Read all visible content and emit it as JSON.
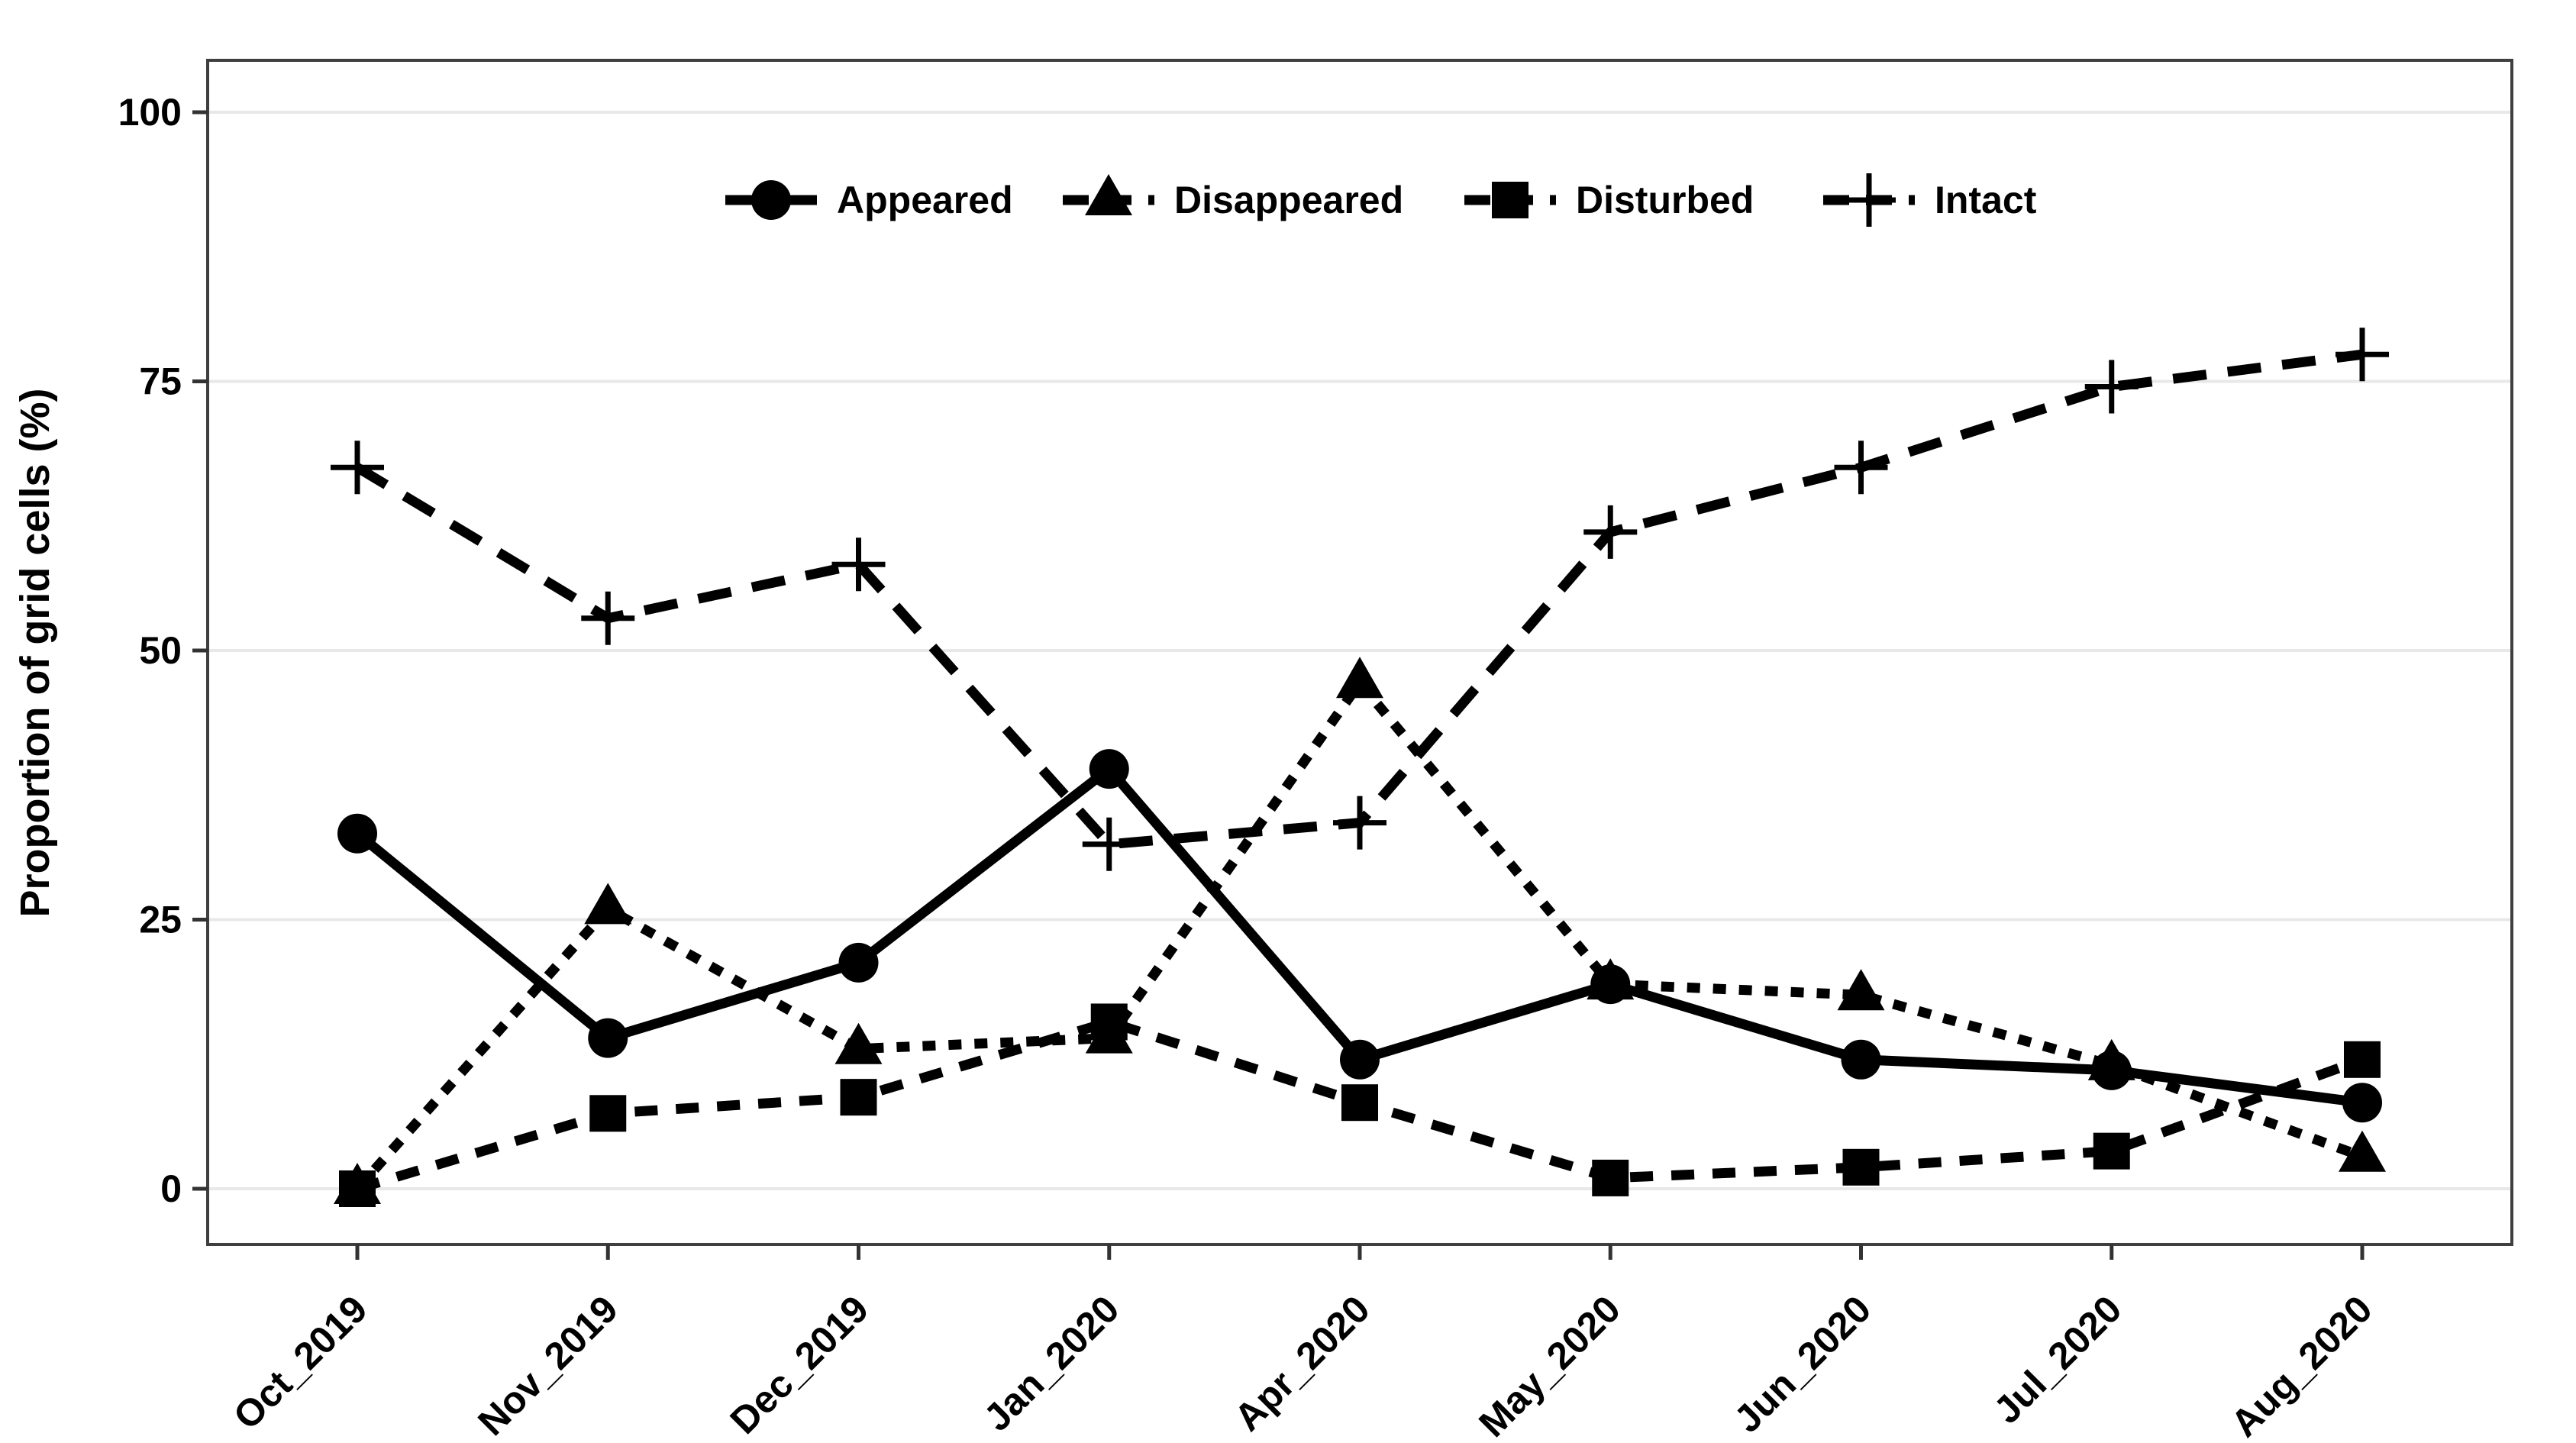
{
  "figure": {
    "background": "#ffffff",
    "panel_border_color": "#3f3f3f",
    "gridline_color": "#e8e8e8",
    "tick_color": "#333333",
    "line_color": "#000000",
    "text_color": "#000000"
  },
  "chart_data": {
    "type": "line",
    "title": "",
    "xlabel": "",
    "ylabel": "Proportion of grid cells (%)",
    "ylim": [
      0,
      100
    ],
    "yticks": [
      0,
      25,
      50,
      75,
      100
    ],
    "grid": "horizontal-major-only",
    "legend_position": "top-center-inside",
    "categories": [
      "Oct_2019",
      "Nov_2019",
      "Dec_2019",
      "Jan_2020",
      "Apr_2020",
      "May_2020",
      "Jun_2020",
      "Jul_2020",
      "Aug_2020"
    ],
    "series": [
      {
        "name": "Appeared",
        "marker": "circle",
        "linestyle": "solid",
        "color": "#000000",
        "values": [
          33,
          14,
          21,
          39,
          12,
          19,
          12,
          11,
          8
        ]
      },
      {
        "name": "Disappeared",
        "marker": "triangle",
        "linestyle": "dash-short",
        "color": "#000000",
        "values": [
          0,
          26,
          13,
          14,
          47,
          19,
          18,
          11.5,
          3
        ]
      },
      {
        "name": "Disturbed",
        "marker": "square",
        "linestyle": "dash-medium",
        "color": "#000000",
        "values": [
          0,
          7,
          8.5,
          15.5,
          8,
          1,
          2,
          3.5,
          12
        ]
      },
      {
        "name": "Intact",
        "marker": "plus",
        "linestyle": "dash-long",
        "color": "#000000",
        "values": [
          67,
          53,
          58,
          32,
          34,
          61,
          67,
          74.5,
          77.5
        ]
      }
    ]
  }
}
